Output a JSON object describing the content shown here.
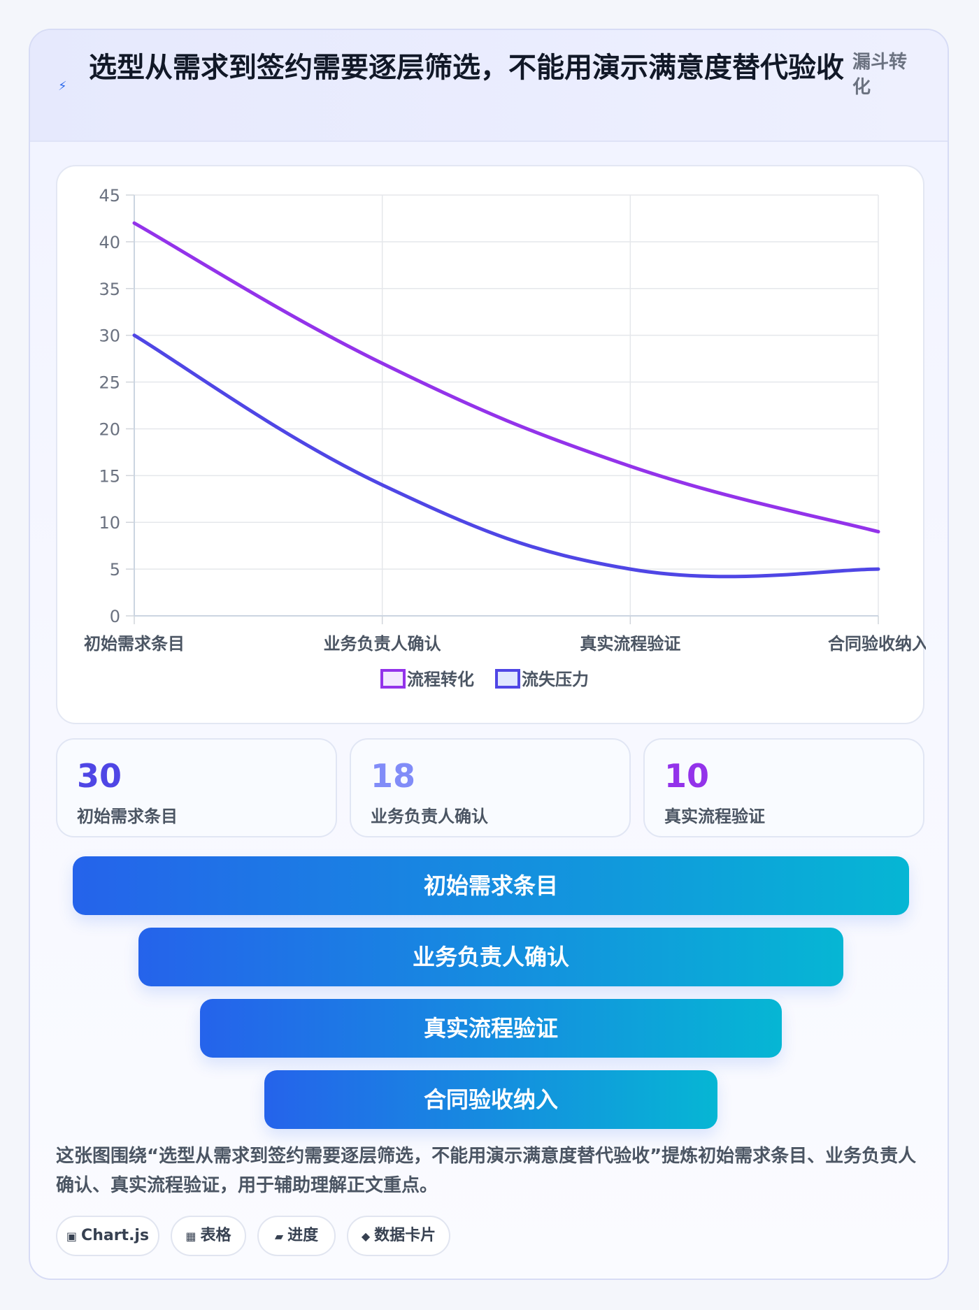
{
  "header": {
    "icon": "lightning-icon",
    "title": "选型从需求到签约需要逐层筛选，不能用演示满意度替代验收",
    "tag": "漏斗转化"
  },
  "chart_data": {
    "type": "line",
    "categories": [
      "初始需求条目",
      "业务负责人确认",
      "真实流程验证",
      "合同验收纳入"
    ],
    "series": [
      {
        "name": "流程转化",
        "values": [
          42,
          27,
          16,
          9
        ],
        "color": "#9333ea"
      },
      {
        "name": "流失压力",
        "values": [
          30,
          14,
          5,
          5
        ],
        "color": "#4f46e5"
      }
    ],
    "ylim": [
      0,
      45
    ],
    "yticks": [
      0,
      5,
      10,
      15,
      20,
      25,
      30,
      35,
      40,
      45
    ],
    "grid": true,
    "legend_position": "bottom"
  },
  "stats": [
    {
      "value": "30",
      "label": "初始需求条目",
      "color": "#4f46e5"
    },
    {
      "value": "18",
      "label": "业务负责人确认",
      "color": "#818cf8"
    },
    {
      "value": "10",
      "label": "真实流程验证",
      "color": "#9333ea"
    }
  ],
  "funnel": [
    {
      "label": "初始需求条目"
    },
    {
      "label": "业务负责人确认"
    },
    {
      "label": "真实流程验证"
    },
    {
      "label": "合同验收纳入"
    }
  ],
  "description": "这张图围绕“选型从需求到签约需要逐层筛选，不能用演示满意度替代验收”提炼初始需求条目、业务负责人确认、真实流程验证，用于辅助理解正文重点。",
  "chips": [
    {
      "icon": "chart-icon",
      "glyph": "▣",
      "label": "Chart.js"
    },
    {
      "icon": "table-icon",
      "glyph": "▦",
      "label": "表格"
    },
    {
      "icon": "progress-icon",
      "glyph": "▰",
      "label": "进度"
    },
    {
      "icon": "data-card-icon",
      "glyph": "◆",
      "label": "数据卡片"
    }
  ]
}
